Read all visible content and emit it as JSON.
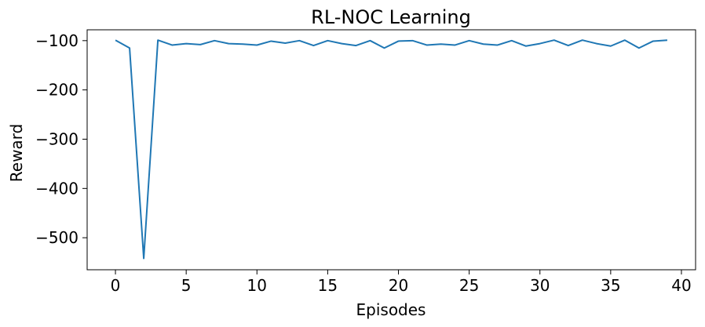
{
  "chart_data": {
    "type": "line",
    "title": "RL-NOC Learning",
    "xlabel": "Episodes",
    "ylabel": "Reward",
    "xlim": [
      -2,
      41
    ],
    "ylim": [
      -565,
      -78
    ],
    "xticks": [
      0,
      5,
      10,
      15,
      20,
      25,
      30,
      35,
      40
    ],
    "yticks": [
      -100,
      -200,
      -300,
      -400,
      -500
    ],
    "grid": false,
    "series": [
      {
        "color": "#1f77b4",
        "x": [
          0,
          1,
          2,
          3,
          4,
          5,
          6,
          7,
          8,
          9,
          10,
          11,
          12,
          13,
          14,
          15,
          16,
          17,
          18,
          19,
          20,
          21,
          22,
          23,
          24,
          25,
          26,
          27,
          28,
          29,
          30,
          31,
          32,
          33,
          34,
          35,
          36,
          37,
          38,
          39
        ],
        "values": [
          -99,
          -115,
          -542,
          -99,
          -109,
          -106,
          -108,
          -100,
          -106,
          -107,
          -109,
          -101,
          -105,
          -100,
          -110,
          -100,
          -106,
          -110,
          -100,
          -115,
          -101,
          -100,
          -109,
          -107,
          -109,
          -100,
          -107,
          -109,
          -100,
          -111,
          -106,
          -99,
          -110,
          -99,
          -106,
          -111,
          -99,
          -115,
          -101,
          -99
        ]
      }
    ]
  }
}
